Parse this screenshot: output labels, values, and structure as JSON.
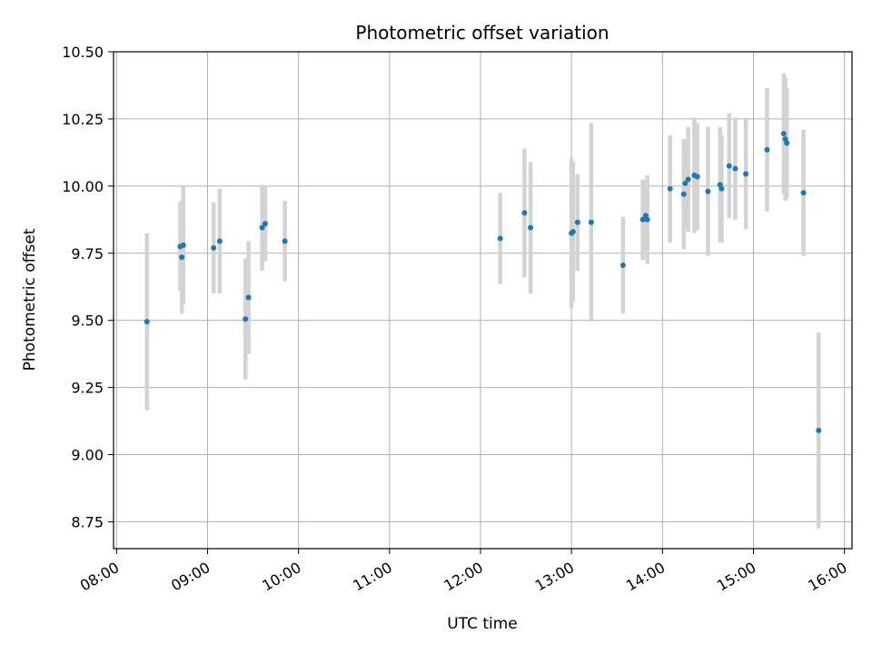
{
  "chart_data": {
    "type": "scatter",
    "title": "Photometric offset variation",
    "xlabel": "UTC time",
    "ylabel": "Photometric offset",
    "xlim": [
      "07:58",
      "16:05"
    ],
    "ylim": [
      8.65,
      10.5
    ],
    "x_ticks": [
      "08:00",
      "09:00",
      "10:00",
      "11:00",
      "12:00",
      "13:00",
      "14:00",
      "15:00",
      "16:00"
    ],
    "y_ticks": [
      "8.75",
      "9.00",
      "9.25",
      "9.50",
      "9.75",
      "10.00",
      "10.25",
      "10.50"
    ],
    "grid": true,
    "colors": {
      "point": "#1f77b4",
      "errorbar": "#d3d3d3",
      "grid": "#b0b0b0"
    },
    "points": [
      {
        "x": "08:20",
        "y": 9.495,
        "err": 0.33
      },
      {
        "x": "08:42",
        "y": 9.775,
        "err": 0.165
      },
      {
        "x": "08:43",
        "y": 9.735,
        "err": 0.21
      },
      {
        "x": "08:44",
        "y": 9.78,
        "err": 0.22
      },
      {
        "x": "09:04",
        "y": 9.77,
        "err": 0.17
      },
      {
        "x": "09:08",
        "y": 9.795,
        "err": 0.195
      },
      {
        "x": "09:25",
        "y": 9.505,
        "err": 0.225
      },
      {
        "x": "09:27",
        "y": 9.585,
        "err": 0.21
      },
      {
        "x": "09:36",
        "y": 9.845,
        "err": 0.16
      },
      {
        "x": "09:38",
        "y": 9.86,
        "err": 0.14
      },
      {
        "x": "09:51",
        "y": 9.795,
        "err": 0.15
      },
      {
        "x": "12:13",
        "y": 9.805,
        "err": 0.17
      },
      {
        "x": "12:29",
        "y": 9.9,
        "err": 0.24
      },
      {
        "x": "12:33",
        "y": 9.845,
        "err": 0.245
      },
      {
        "x": "13:00",
        "y": 9.825,
        "err": 0.28
      },
      {
        "x": "13:01",
        "y": 9.83,
        "err": 0.26
      },
      {
        "x": "13:04",
        "y": 9.865,
        "err": 0.18
      },
      {
        "x": "13:13",
        "y": 9.865,
        "err": 0.37
      },
      {
        "x": "13:34",
        "y": 9.705,
        "err": 0.18
      },
      {
        "x": "13:47",
        "y": 9.875,
        "err": 0.15
      },
      {
        "x": "13:49",
        "y": 9.89,
        "err": 0.13
      },
      {
        "x": "13:50",
        "y": 9.875,
        "err": 0.165
      },
      {
        "x": "14:05",
        "y": 9.99,
        "err": 0.2
      },
      {
        "x": "14:14",
        "y": 9.97,
        "err": 0.205
      },
      {
        "x": "14:15",
        "y": 10.01,
        "err": 0.165
      },
      {
        "x": "14:17",
        "y": 10.025,
        "err": 0.195
      },
      {
        "x": "14:21",
        "y": 10.04,
        "err": 0.215
      },
      {
        "x": "14:23",
        "y": 10.035,
        "err": 0.2
      },
      {
        "x": "14:30",
        "y": 9.98,
        "err": 0.24
      },
      {
        "x": "14:38",
        "y": 10.005,
        "err": 0.215
      },
      {
        "x": "14:39",
        "y": 9.99,
        "err": 0.2
      },
      {
        "x": "14:44",
        "y": 10.075,
        "err": 0.195
      },
      {
        "x": "14:48",
        "y": 10.065,
        "err": 0.19
      },
      {
        "x": "14:55",
        "y": 10.045,
        "err": 0.205
      },
      {
        "x": "15:09",
        "y": 10.135,
        "err": 0.23
      },
      {
        "x": "15:20",
        "y": 10.195,
        "err": 0.225
      },
      {
        "x": "15:21",
        "y": 10.175,
        "err": 0.23
      },
      {
        "x": "15:22",
        "y": 10.16,
        "err": 0.205
      },
      {
        "x": "15:33",
        "y": 9.975,
        "err": 0.235
      },
      {
        "x": "15:43",
        "y": 9.09,
        "err": 0.365
      }
    ]
  }
}
